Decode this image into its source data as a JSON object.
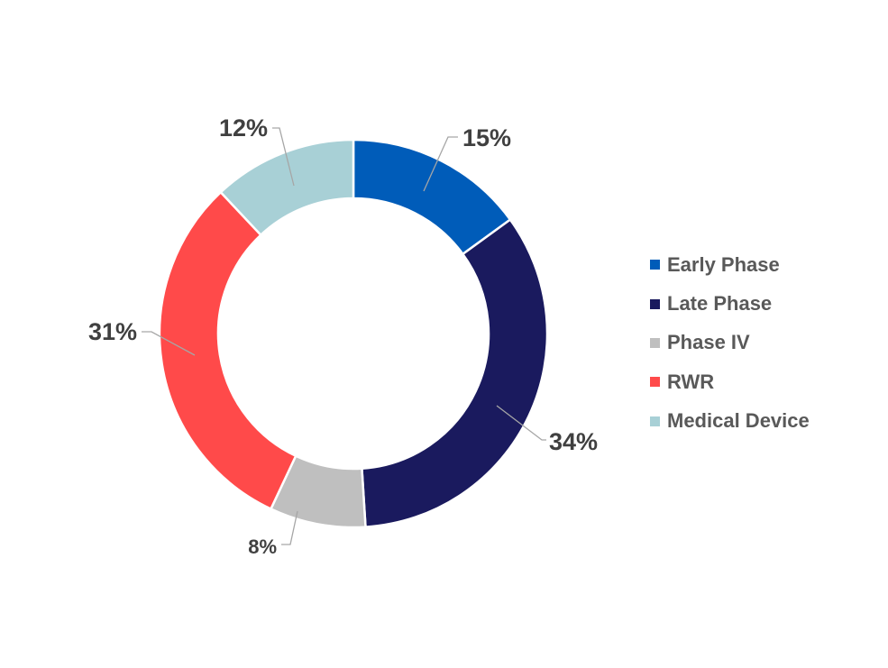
{
  "chart_data": {
    "type": "pie",
    "variant": "donut",
    "title": "",
    "legend_position": "right",
    "slices": [
      {
        "name": "Early Phase",
        "value": 15,
        "label": "15%",
        "color": "#005CB9"
      },
      {
        "name": "Late Phase",
        "value": 34,
        "label": "34%",
        "color": "#1A1A5E"
      },
      {
        "name": "Phase IV",
        "value": 8,
        "label": "8%",
        "color": "#BFBFBF"
      },
      {
        "name": "RWR",
        "value": 31,
        "label": "31%",
        "color": "#FF4A4A"
      },
      {
        "name": "Medical Device",
        "value": 12,
        "label": "12%",
        "color": "#A8D0D6"
      }
    ]
  }
}
